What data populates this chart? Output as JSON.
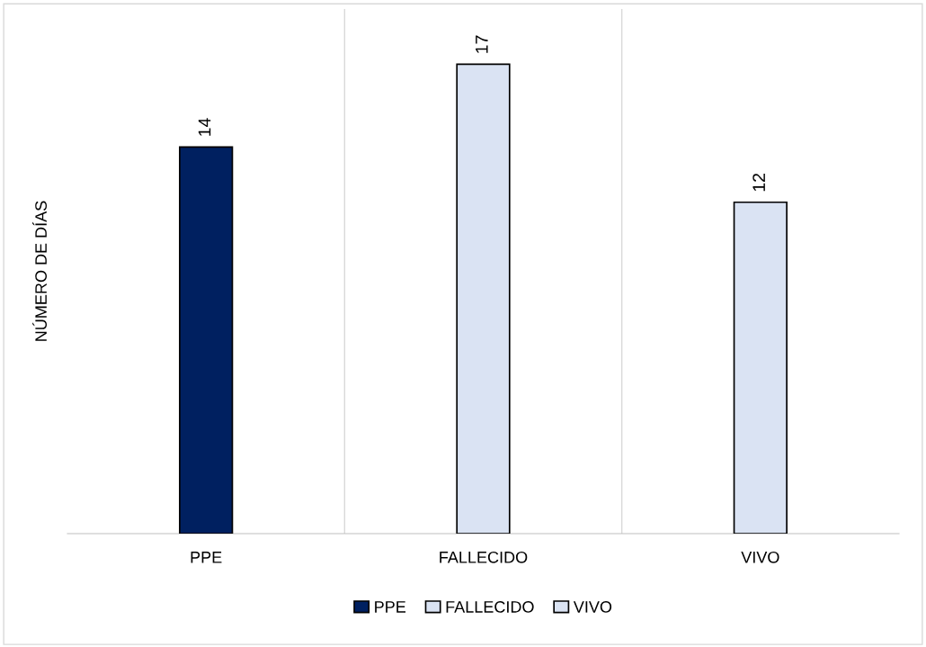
{
  "chart_data": {
    "type": "bar",
    "ylabel": "NÚMERO DE DÍAS",
    "categories": [
      "PPE",
      "FALLECIDO",
      "VIVO"
    ],
    "series": [
      {
        "name": "PPE",
        "color": "#002060",
        "values": [
          14,
          null,
          null
        ]
      },
      {
        "name": "FALLECIDO",
        "color": "#dae3f3",
        "values": [
          null,
          17,
          null
        ]
      },
      {
        "name": "VIVO",
        "color": "#dae3f3",
        "values": [
          null,
          null,
          12
        ]
      }
    ],
    "ylim": [
      0,
      19
    ],
    "data_labels": true,
    "grid": "x",
    "legend": "bottom"
  }
}
